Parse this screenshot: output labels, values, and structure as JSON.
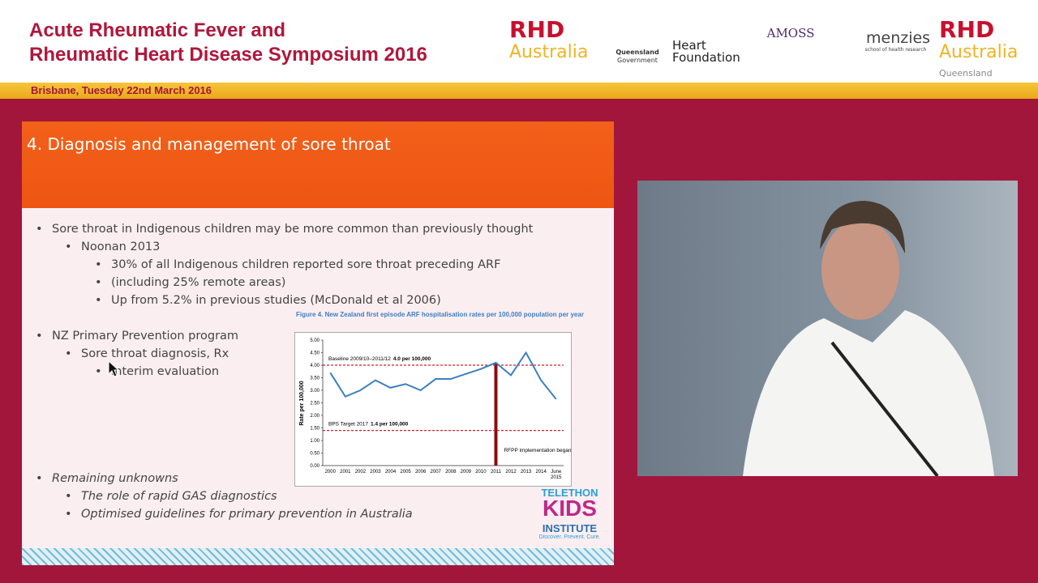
{
  "header": {
    "title_lines": [
      "Acute Rheumatic Fever and",
      "Rheumatic Heart Disease Symposium 2016"
    ],
    "date": "Brisbane, Tuesday 22nd March 2016",
    "logos": [
      [
        "RHD",
        "Australia"
      ],
      [
        "Queensland",
        "Government"
      ],
      [
        "Heart",
        "Foundation"
      ],
      [
        "AMOSS"
      ],
      [
        "menzies",
        "school of health research"
      ],
      [
        "RHD",
        "Australia",
        "Queensland"
      ]
    ]
  },
  "slide": {
    "title": "4. Diagnosis and management of sore throat",
    "bullets": [
      "Sore throat in Indigenous children may be more common than previously thought",
      "Noonan 2013",
      "30% of all Indigenous children reported sore throat preceding ARF",
      "(including 25% remote areas)",
      "Up from 5.2% in previous studies (McDonald et al 2006)",
      "NZ Primary Prevention program",
      "Sore throat diagnosis, Rx",
      "Interim evaluation",
      "Remaining unknowns",
      "The role of rapid GAS diagnostics",
      "Optimised guidelines for primary prevention in Australia"
    ],
    "chart": {
      "type": "line",
      "title": "Figure 4. New Zealand first episode ARF hospitalisation rates per 100,000 population per year",
      "ylabel": "Rate per 100,000",
      "categories": [
        "2000",
        "2001",
        "2002",
        "2003",
        "2004",
        "2005",
        "2006",
        "2007",
        "2008",
        "2009",
        "2010",
        "2011",
        "2012",
        "2013",
        "2014",
        "June 2015"
      ],
      "values": [
        3.7,
        2.75,
        3.0,
        3.4,
        3.1,
        3.25,
        3.0,
        3.45,
        3.45,
        3.65,
        3.85,
        4.1,
        3.6,
        4.5,
        3.4,
        2.65
      ],
      "color": "#3c7fc0",
      "ylim": [
        0,
        5
      ],
      "yticks": [
        {
          "value": 0,
          "label": "0.00"
        },
        {
          "value": 0.5,
          "label": "0.50"
        },
        {
          "value": 1,
          "label": "1.00"
        },
        {
          "value": 1.5,
          "label": "1.50"
        },
        {
          "value": 2,
          "label": "2.00"
        },
        {
          "value": 2.5,
          "label": "2.50"
        },
        {
          "value": 3,
          "label": "3.00"
        },
        {
          "value": 3.5,
          "label": "3.50"
        },
        {
          "value": 4,
          "label": "4.00"
        },
        {
          "value": 4.5,
          "label": "4.50"
        },
        {
          "value": 5,
          "label": "5.00"
        }
      ],
      "reference_lines": [
        {
          "label": "Baseline 2009/10–2011/12",
          "value_label": "4.0 per 100,000",
          "value": 4.0
        },
        {
          "label": "BPS Target 2017",
          "value_label": "1.4 per 100,000",
          "value": 1.4
        }
      ],
      "reference_color": "#d0202a",
      "implementation": {
        "category": "2011",
        "label": "RFPP implementation began",
        "color": "#8b0d10"
      }
    },
    "footer_logo": [
      "TELETHON",
      "KIDS",
      "INSTITUTE",
      "Discover. Prevent. Cure."
    ]
  }
}
